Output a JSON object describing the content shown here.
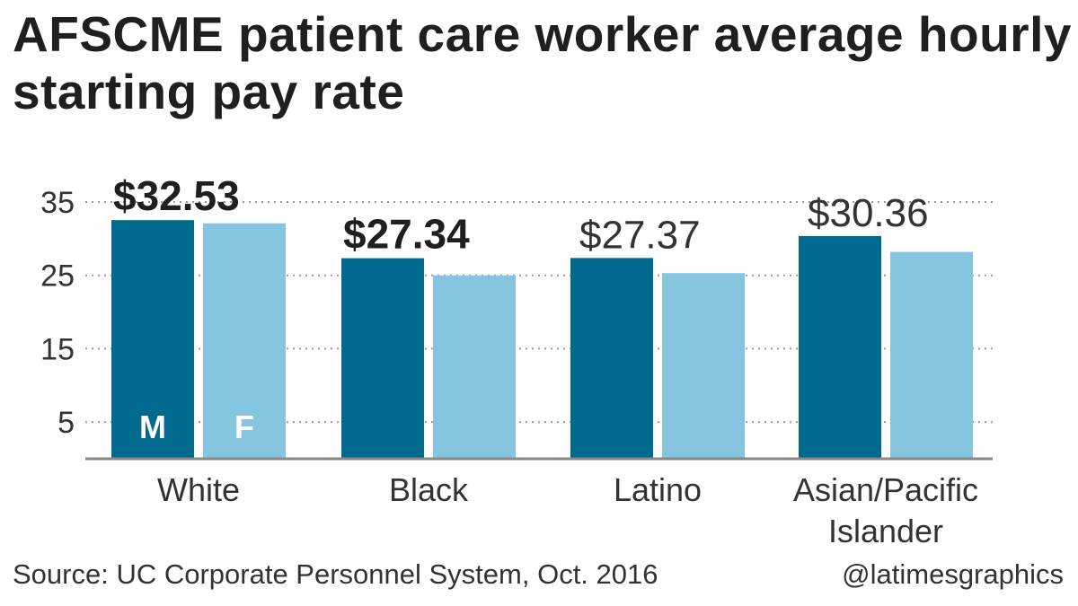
{
  "title": "AFSCME patient care worker average hourly starting pay rate",
  "source": "Source: UC Corporate Personnel System, Oct. 2016",
  "credit": "@latimesgraphics",
  "colors": {
    "male": "#006a8e",
    "female": "#86c5df",
    "grid": "#999999",
    "axis": "#888888",
    "text": "#1f1f1f"
  },
  "chart_data": {
    "type": "bar",
    "categories": [
      "White",
      "Black",
      "Latino",
      "Asian/Pacific Islander"
    ],
    "category_lines": [
      [
        "White"
      ],
      [
        "Black"
      ],
      [
        "Latino"
      ],
      [
        "Asian/Pacific",
        "Islander"
      ]
    ],
    "series": [
      {
        "name": "M",
        "values": [
          32.53,
          27.34,
          27.37,
          30.36
        ]
      },
      {
        "name": "F",
        "values": [
          32.1,
          25.0,
          25.3,
          28.2
        ]
      }
    ],
    "value_labels": [
      "$32.53",
      "$27.34",
      "$27.37",
      "$30.36"
    ],
    "value_labels_bold": [
      true,
      true,
      false,
      false
    ],
    "series_labels_in_first_group": [
      "M",
      "F"
    ],
    "yticks": [
      5,
      15,
      25,
      35
    ],
    "ylim": [
      0,
      35
    ],
    "grid": true,
    "xlabel": "",
    "ylabel": ""
  }
}
